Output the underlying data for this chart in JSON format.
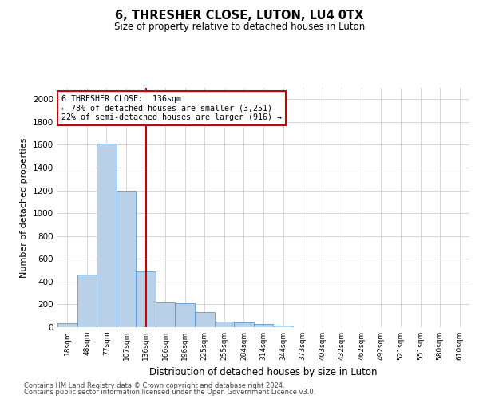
{
  "title": "6, THRESHER CLOSE, LUTON, LU4 0TX",
  "subtitle": "Size of property relative to detached houses in Luton",
  "xlabel": "Distribution of detached houses by size in Luton",
  "ylabel": "Number of detached properties",
  "categories": [
    "18sqm",
    "48sqm",
    "77sqm",
    "107sqm",
    "136sqm",
    "166sqm",
    "196sqm",
    "225sqm",
    "255sqm",
    "284sqm",
    "314sqm",
    "344sqm",
    "373sqm",
    "403sqm",
    "432sqm",
    "462sqm",
    "492sqm",
    "521sqm",
    "551sqm",
    "580sqm",
    "610sqm"
  ],
  "values": [
    35,
    460,
    1610,
    1200,
    490,
    215,
    210,
    130,
    50,
    40,
    25,
    15,
    0,
    0,
    0,
    0,
    0,
    0,
    0,
    0,
    0
  ],
  "bar_color": "#b8d0e8",
  "bar_edge_color": "#5b9bd5",
  "vline_x": 4,
  "vline_color": "#cc0000",
  "annotation_text": "6 THRESHER CLOSE:  136sqm\n← 78% of detached houses are smaller (3,251)\n22% of semi-detached houses are larger (916) →",
  "annotation_box_color": "#cc0000",
  "ylim": [
    0,
    2100
  ],
  "yticks": [
    0,
    200,
    400,
    600,
    800,
    1000,
    1200,
    1400,
    1600,
    1800,
    2000
  ],
  "footer_line1": "Contains HM Land Registry data © Crown copyright and database right 2024.",
  "footer_line2": "Contains public sector information licensed under the Open Government Licence v3.0.",
  "bg_color": "#ffffff",
  "grid_color": "#d0d0d0"
}
